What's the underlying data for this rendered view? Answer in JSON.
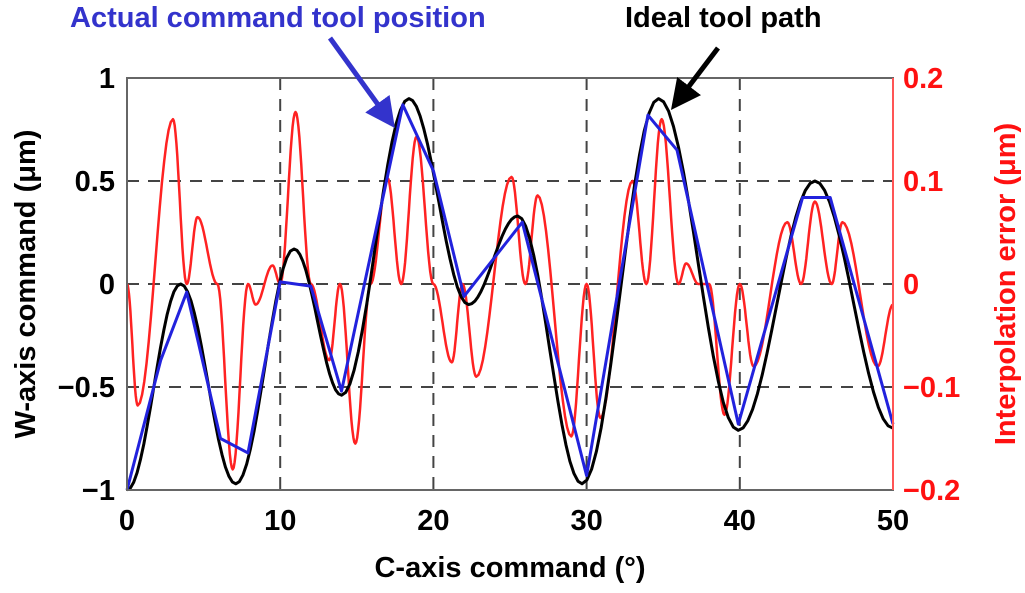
{
  "chart_data": {
    "type": "line",
    "xlabel": "C-axis command (°)",
    "ylabel": "W-axis command (μm)",
    "y2label": "Interpolation error (μm)",
    "xlim": [
      0,
      50
    ],
    "ylim": [
      -1,
      1
    ],
    "y2lim": [
      -0.2,
      0.2
    ],
    "xticks": [
      "0",
      "10",
      "20",
      "30",
      "40",
      "50"
    ],
    "yticks": [
      "1",
      "0.5",
      "0",
      "−0.5",
      "−1"
    ],
    "y2ticks": [
      "0.2",
      "0.1",
      "0",
      "−0.1",
      "−0.2"
    ],
    "grid": true,
    "annotations": [
      {
        "text": "Actual command tool position",
        "color": "#3333cc",
        "points_to": "blue series near x=18"
      },
      {
        "text": "Ideal tool path",
        "color": "#000000",
        "points_to": "black series near x=35"
      }
    ],
    "series": [
      {
        "color": "#000000",
        "axis": "left",
        "style": "smooth",
        "x": [
          0,
          3.5,
          7.1,
          10.9,
          14,
          18.4,
          22.3,
          25.5,
          29.7,
          34.7,
          39.9,
          44.9,
          50
        ],
        "y": [
          -1,
          0,
          -0.97,
          0.17,
          -0.54,
          0.9,
          -0.1,
          0.33,
          -0.97,
          0.9,
          -0.71,
          0.5,
          -0.7
        ]
      },
      {
        "color": "#2222dd",
        "axis": "left",
        "style": "piecewise",
        "x": [
          0,
          2.2,
          3.9,
          6.1,
          7.9,
          10,
          12,
          14,
          18,
          20,
          22,
          25.8,
          30,
          34,
          35.9,
          39.9,
          44.1,
          45.9,
          50
        ],
        "y": [
          -1,
          -0.37,
          -0.04,
          -0.75,
          -0.82,
          0.01,
          -0.01,
          -0.52,
          0.87,
          0.55,
          -0.06,
          0.3,
          -0.93,
          0.82,
          0.65,
          -0.68,
          0.42,
          0.42,
          -0.68
        ]
      },
      {
        "color": "#ff2222",
        "axis": "right",
        "style": "smooth",
        "x": [
          0,
          0.7,
          3,
          3.9,
          4.6,
          5.9,
          6.9,
          7.9,
          8.4,
          9.5,
          10,
          11,
          12,
          13.2,
          13.9,
          14.9,
          15.9,
          17,
          17.9,
          18.9,
          20,
          21.2,
          21.9,
          22.8,
          25.1,
          26,
          26.8,
          29,
          30,
          30.9,
          33,
          33.9,
          34.9,
          36,
          36.5,
          37.3,
          38,
          39,
          40,
          40.9,
          43.1,
          44,
          44.9,
          46,
          46.7,
          49,
          50
        ],
        "y": [
          0,
          -0.118,
          0.16,
          0,
          0.065,
          0,
          -0.18,
          0,
          -0.02,
          0.018,
          0,
          0.167,
          0,
          -0.074,
          0,
          -0.155,
          0,
          0.103,
          0,
          0.143,
          0,
          -0.076,
          0,
          -0.09,
          0.104,
          0,
          0.086,
          -0.148,
          0,
          -0.13,
          0.1,
          0,
          0.16,
          0,
          0.02,
          0,
          0,
          -0.127,
          0,
          -0.08,
          0.06,
          0,
          0.08,
          0,
          0.06,
          -0.08,
          -0.02
        ]
      }
    ]
  }
}
